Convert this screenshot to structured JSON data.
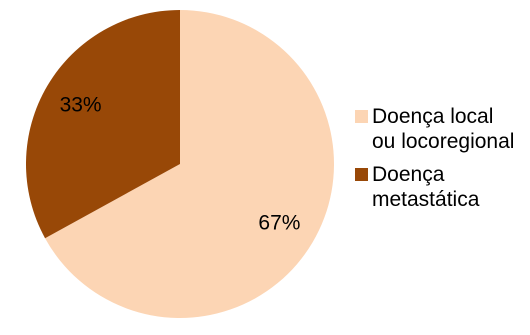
{
  "chart_data": {
    "type": "pie",
    "title": "",
    "slices": [
      {
        "label": "Doença local ou locoregional",
        "value": 67,
        "display": "67%",
        "color": "#fcd5b4"
      },
      {
        "label": "Doença metastática",
        "value": 33,
        "display": "33%",
        "color": "#984807"
      }
    ],
    "start_angle_deg": 0,
    "direction": "clockwise",
    "legend_position": "right"
  }
}
